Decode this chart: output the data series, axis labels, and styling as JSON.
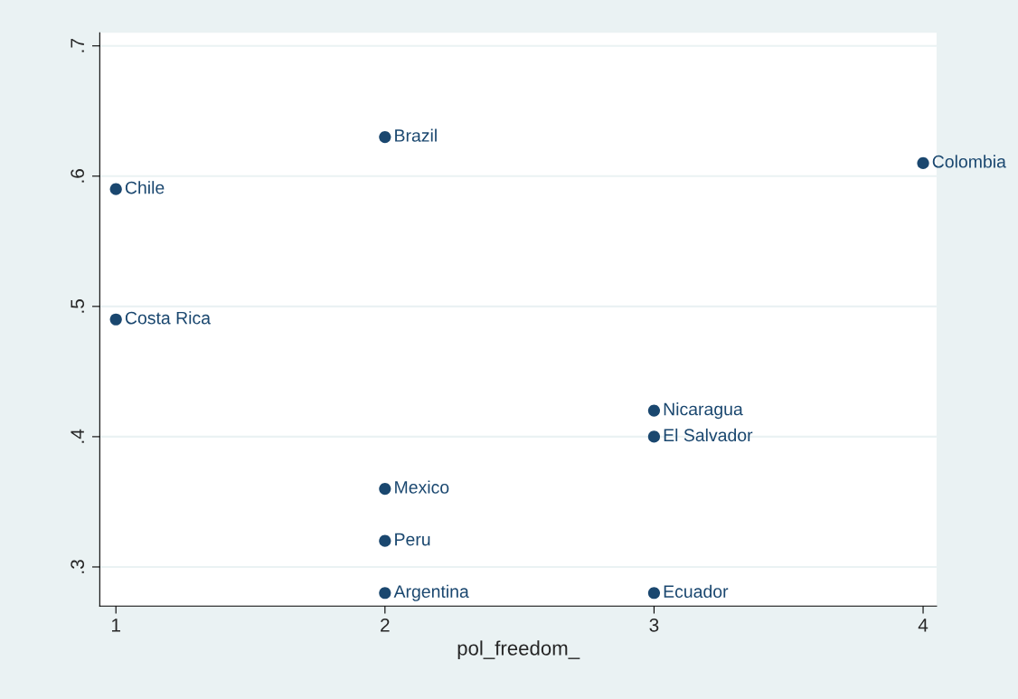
{
  "chart_data": {
    "type": "scatter",
    "xlabel": "pol_freedom_",
    "x": [
      2,
      4,
      1,
      1,
      3,
      3,
      2,
      2,
      2,
      3
    ],
    "series": [
      {
        "color": "#1a476f",
        "values": [
          0.63,
          0.61,
          0.59,
          0.49,
          0.42,
          0.4,
          0.36,
          0.32,
          0.28,
          0.28
        ]
      }
    ],
    "annotations": [
      {
        "text": "Brazil",
        "x": 2,
        "y": 0.63
      },
      {
        "text": "Colombia",
        "x": 4,
        "y": 0.61
      },
      {
        "text": "Chile",
        "x": 1,
        "y": 0.59
      },
      {
        "text": "Costa Rica",
        "x": 1,
        "y": 0.49
      },
      {
        "text": "Nicaragua",
        "x": 3,
        "y": 0.42
      },
      {
        "text": "El Salvador",
        "x": 3,
        "y": 0.4
      },
      {
        "text": "Mexico",
        "x": 2,
        "y": 0.36
      },
      {
        "text": "Peru",
        "x": 2,
        "y": 0.32
      },
      {
        "text": "Argentina",
        "x": 2,
        "y": 0.28
      },
      {
        "text": "Ecuador",
        "x": 3,
        "y": 0.28
      }
    ],
    "xlim": [
      0.94,
      4.05
    ],
    "xticks": [
      1,
      2,
      3,
      4
    ],
    "ylim": [
      0.27,
      0.71
    ],
    "yticks": [
      {
        "value": 0.3,
        "label": ".3"
      },
      {
        "value": 0.4,
        "label": ".4"
      },
      {
        "value": 0.5,
        "label": ".5"
      },
      {
        "value": 0.6,
        "label": ".6"
      },
      {
        "value": 0.7,
        "label": ".7"
      }
    ],
    "grid": "y",
    "marker": "circle"
  }
}
